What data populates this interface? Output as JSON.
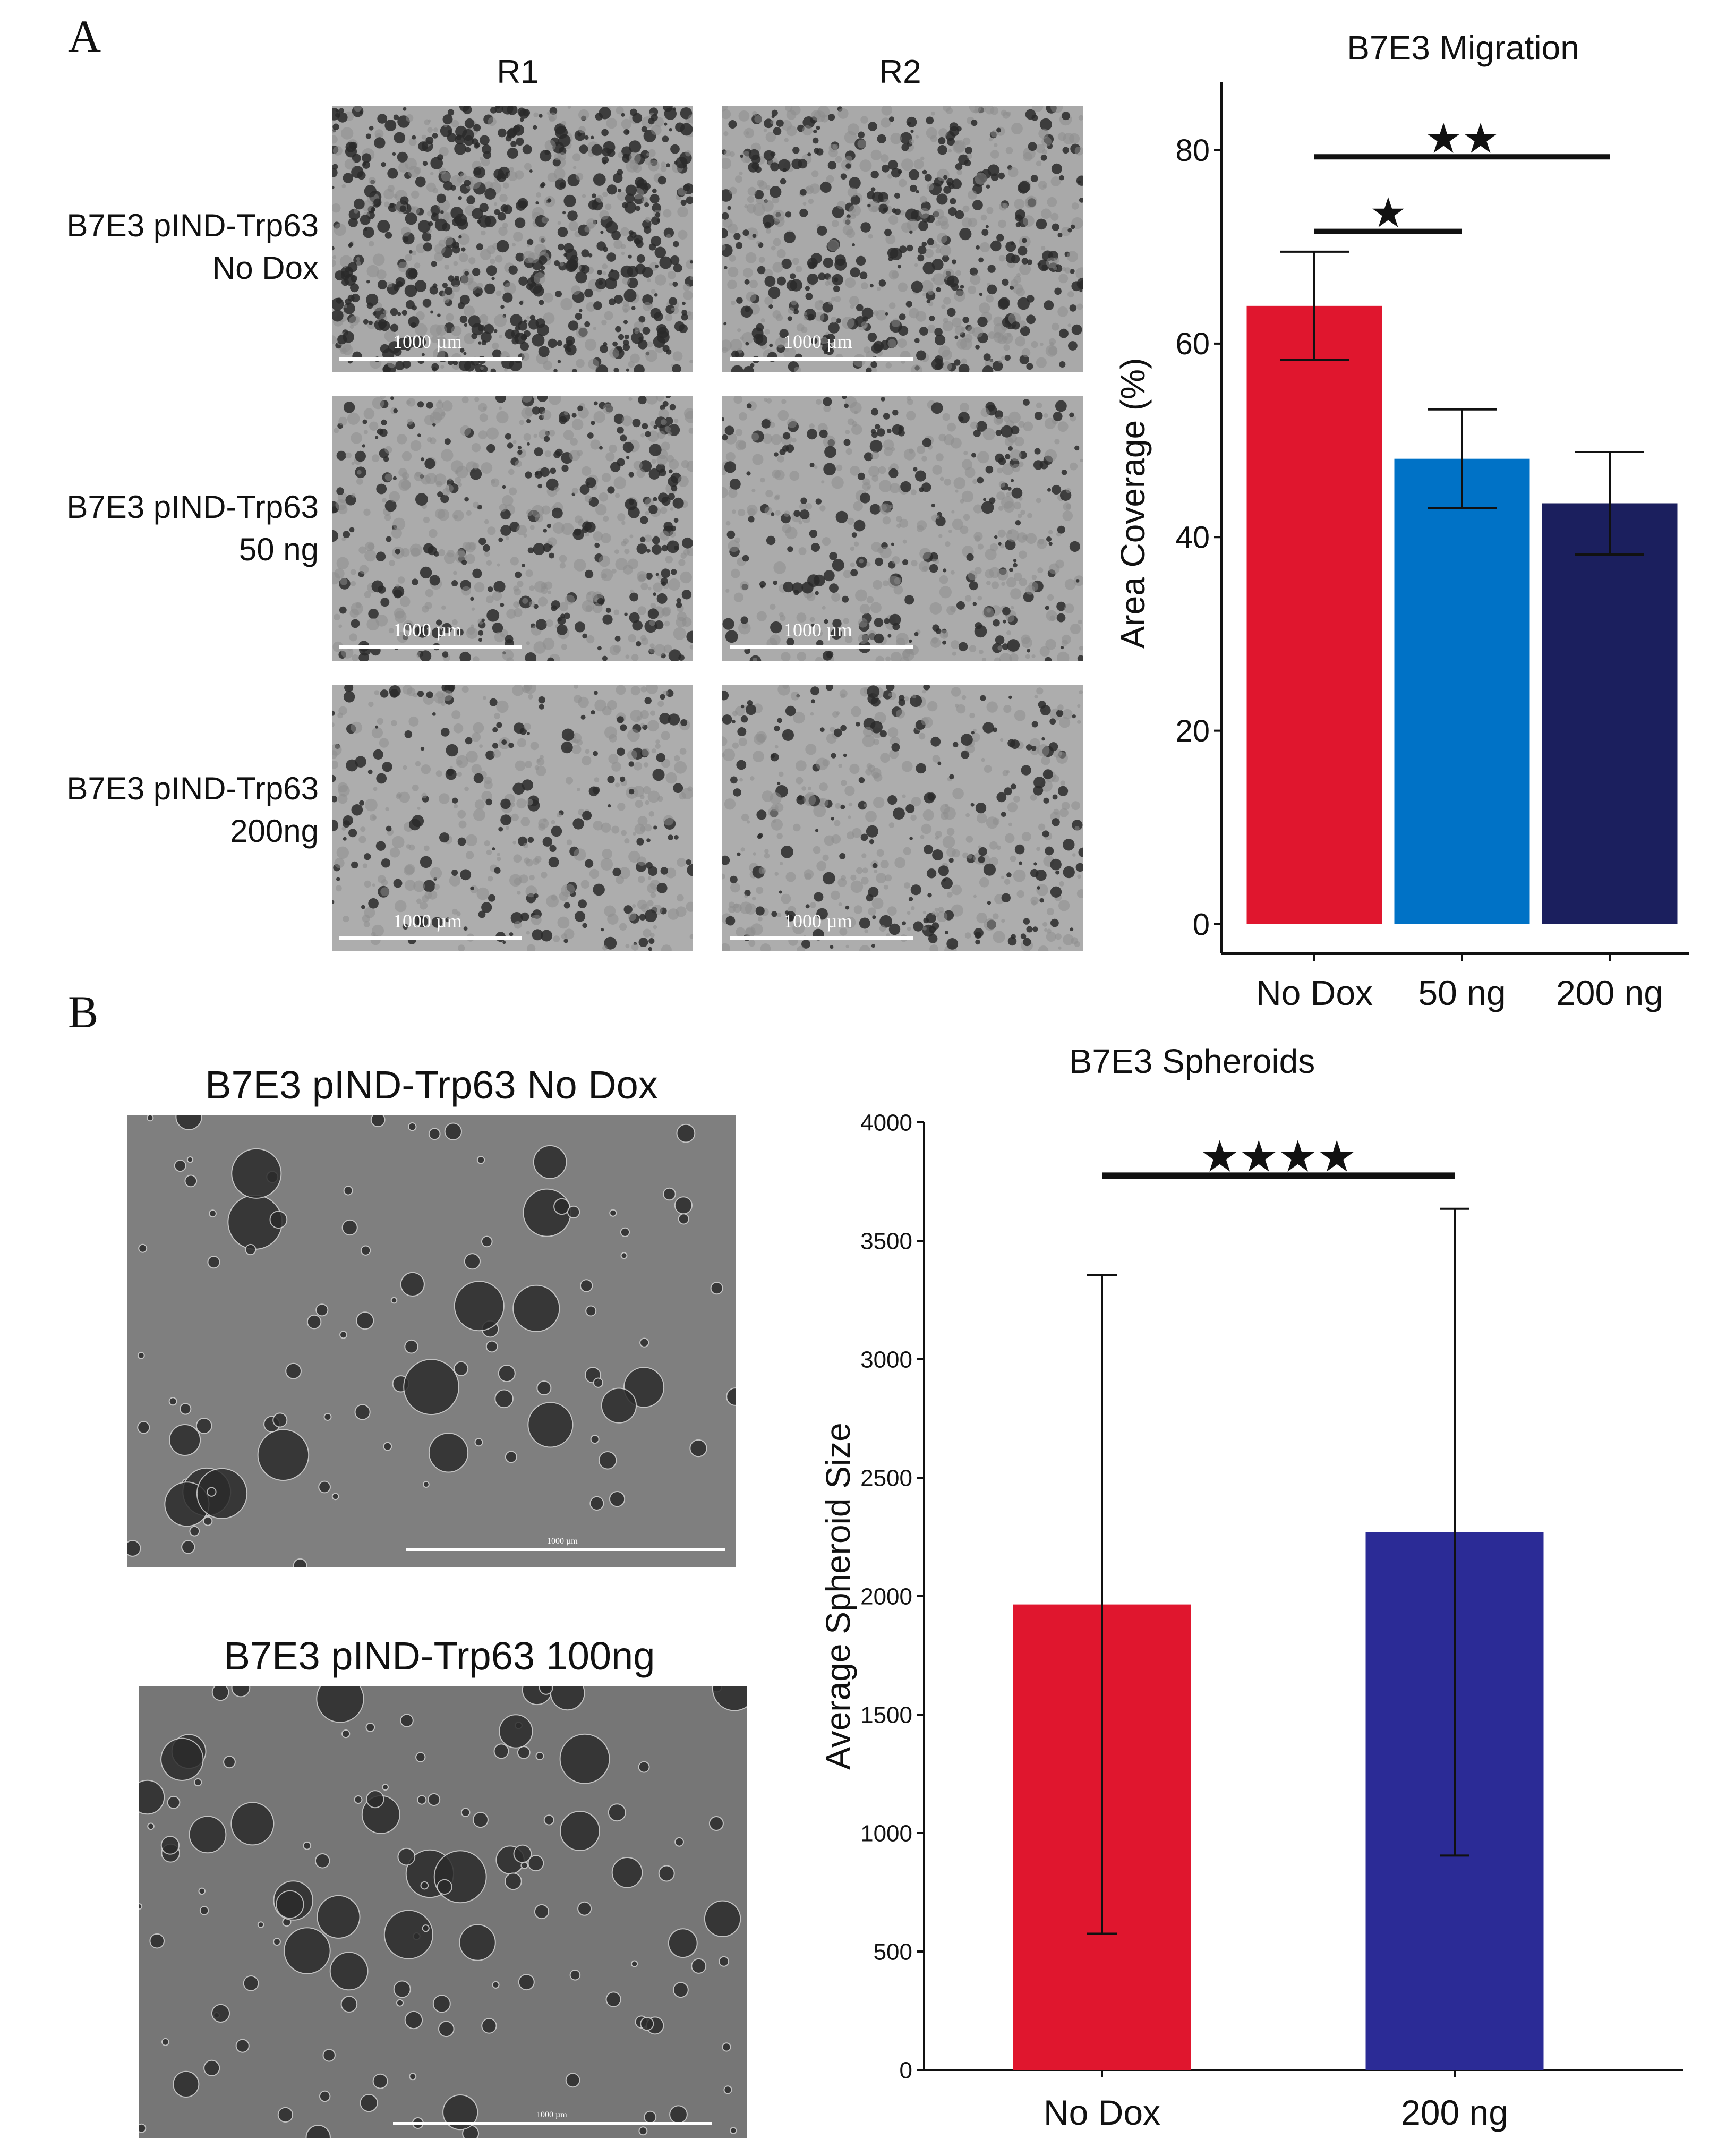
{
  "panel_a": {
    "letter": "A",
    "columns": [
      "R1",
      "R2"
    ],
    "rows": [
      {
        "line1": "B7E3 pIND-Trp63",
        "line2": "No Dox"
      },
      {
        "line1": "B7E3 pIND-Trp63",
        "line2": "50 ng"
      },
      {
        "line1": "B7E3 pIND-Trp63",
        "line2": "200ng"
      }
    ],
    "scale_bar_label": "1000 µm"
  },
  "panel_b": {
    "letter": "B",
    "images": [
      {
        "title": "B7E3 pIND-Trp63 No Dox",
        "scale_bar_label": "1000 µm"
      },
      {
        "title": "B7E3 pIND-Trp63 100ng",
        "scale_bar_label": "1000 µm"
      }
    ]
  },
  "chart_data": [
    {
      "type": "bar",
      "title": "B7E3 Migration",
      "xlabel": "",
      "ylabel": "Area Coverage (%)",
      "categories": [
        "No Dox",
        "50 ng",
        "200 ng"
      ],
      "values": [
        63.9,
        48.1,
        43.5
      ],
      "error": [
        5.6,
        5.1,
        5.3
      ],
      "colors": [
        "#e0162e",
        "#0072c6",
        "#1b1f5e"
      ],
      "ylim": [
        0,
        87
      ],
      "yticks": [
        0,
        20,
        40,
        60,
        80
      ],
      "grid": false,
      "significance": [
        {
          "from": "No Dox",
          "to": "200 ng",
          "label": "★★",
          "y": 79.3
        },
        {
          "from": "No Dox",
          "to": "50 ng",
          "label": "★",
          "y": 71.6
        }
      ]
    },
    {
      "type": "bar",
      "title": "B7E3 Spheroids",
      "xlabel": "",
      "ylabel": "Average Spheroid Size",
      "categories": [
        "No Dox",
        "200 ng"
      ],
      "values": [
        1965,
        2270
      ],
      "error": [
        1390,
        1365
      ],
      "colors": [
        "#e0162e",
        "#2b2b96"
      ],
      "ylim": [
        0,
        4000
      ],
      "yticks": [
        0,
        500,
        1000,
        1500,
        2000,
        2500,
        3000,
        3500,
        4000
      ],
      "grid": false,
      "significance": [
        {
          "from": "No Dox",
          "to": "200 ng",
          "label": "★★★★",
          "y": 3775
        }
      ]
    }
  ]
}
